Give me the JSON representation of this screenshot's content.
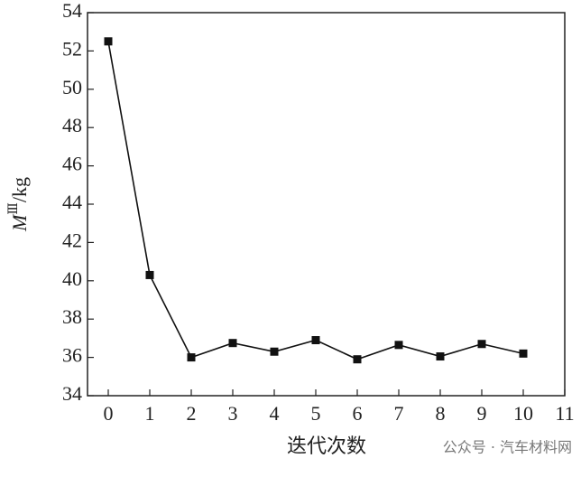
{
  "chart_data": {
    "type": "line",
    "x_label": "迭代次数",
    "y_label": {
      "main": "M",
      "sup": "Ⅲ",
      "unit": "/kg"
    },
    "watermark": "公众号 · 汽车材料网",
    "x": [
      0,
      1,
      2,
      3,
      4,
      5,
      6,
      7,
      8,
      9,
      10
    ],
    "series": [
      {
        "color": "#111111",
        "marker": "square",
        "values": [
          52.5,
          40.3,
          36.0,
          36.75,
          36.3,
          36.9,
          35.9,
          36.65,
          36.05,
          36.7,
          36.2
        ]
      }
    ],
    "xlim": [
      -0.5,
      11
    ],
    "xticks": [
      0,
      1,
      2,
      3,
      4,
      5,
      6,
      7,
      8,
      9,
      10,
      11
    ],
    "ylim": [
      34,
      54
    ],
    "yticks": [
      34,
      36,
      38,
      40,
      42,
      44,
      46,
      48,
      50,
      52,
      54
    ],
    "grid": false
  }
}
